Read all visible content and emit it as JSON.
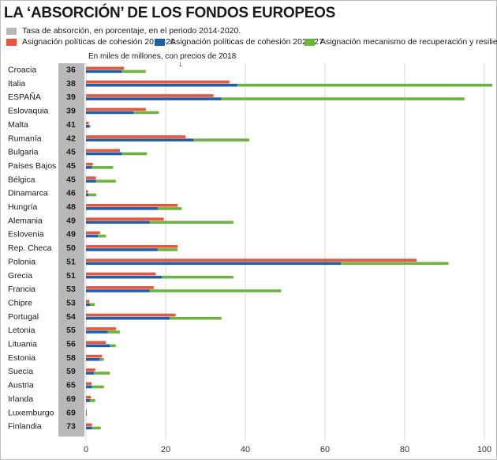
{
  "title": "LA ‘ABSORCIÓN’ DE LOS FONDOS EUROPEOS",
  "legend": [
    {
      "label": "Tasa de absorción, en porcentaje, en el periodo 2014-2020.",
      "color": "#b8b8b8"
    },
    {
      "label": "Asignación políticas de cohesión 2014-20",
      "color": "#e8553a"
    },
    {
      "label": "Asignación políticas de cohesión 2021-27",
      "color": "#1f5faa"
    },
    {
      "label": "Asignación mecanismo de recuperación y resiliencia",
      "color": "#6cb33f"
    }
  ],
  "note": "En miles de millones, con precios de 2018",
  "chart_data": {
    "type": "bar",
    "orientation": "horizontal",
    "categories": [
      "Croacia",
      "Italia",
      "ESPAÑA",
      "Eslovaquia",
      "Malta",
      "Rumanía",
      "Bulgaria",
      "Países Bajos",
      "Bélgica",
      "Dinamarca",
      "Hungría",
      "Alemania",
      "Eslovenia",
      "Rep. Checa",
      "Polonia",
      "Grecia",
      "Francia",
      "Chipre",
      "Portugal",
      "Letonia",
      "Lituania",
      "Estonia",
      "Suecia",
      "Austria",
      "Irlanda",
      "Luxemburgo",
      "Finlandia"
    ],
    "absorption_rate": [
      36,
      38,
      39,
      39,
      41,
      42,
      45,
      45,
      45,
      46,
      48,
      49,
      49,
      50,
      51,
      51,
      53,
      53,
      54,
      55,
      56,
      58,
      59,
      65,
      69,
      69,
      73
    ],
    "series": [
      {
        "name": "Asignación políticas de cohesión 2014-20",
        "color": "#e8553a",
        "values": [
          9.5,
          36,
          32,
          15,
          0.7,
          25,
          8.5,
          1.7,
          2.5,
          0.5,
          23,
          19.5,
          3.5,
          23,
          83,
          17.5,
          17,
          0.8,
          22.5,
          7.5,
          5,
          4,
          2.3,
          1.4,
          1.2,
          0.1,
          1.5
        ]
      },
      {
        "name": "Asignación políticas de cohesión 2021-27",
        "color": "#1f5faa",
        "values": [
          9,
          38,
          34,
          12,
          0.8,
          27,
          9,
          1.5,
          2.5,
          0.6,
          18,
          16,
          3,
          18,
          64,
          19,
          16,
          1,
          21,
          5.5,
          6,
          3.5,
          2,
          1.5,
          1,
          0.1,
          1.5
        ]
      },
      {
        "name": "Asignación mecanismo de recuperación y resiliencia",
        "color": "#6cb33f",
        "values": [
          6,
          64,
          61,
          6.3,
          0.3,
          14,
          6.3,
          5.3,
          5,
          2,
          6,
          21,
          2,
          5,
          27,
          18,
          33,
          1.2,
          13,
          3,
          1.5,
          1,
          4,
          3,
          1.3,
          0.1,
          2.2
        ]
      }
    ],
    "xlim": [
      0,
      100
    ],
    "xticks": [
      "0",
      "20",
      "40",
      "60",
      "80",
      "100"
    ],
    "stacked_second_and_third": true
  }
}
